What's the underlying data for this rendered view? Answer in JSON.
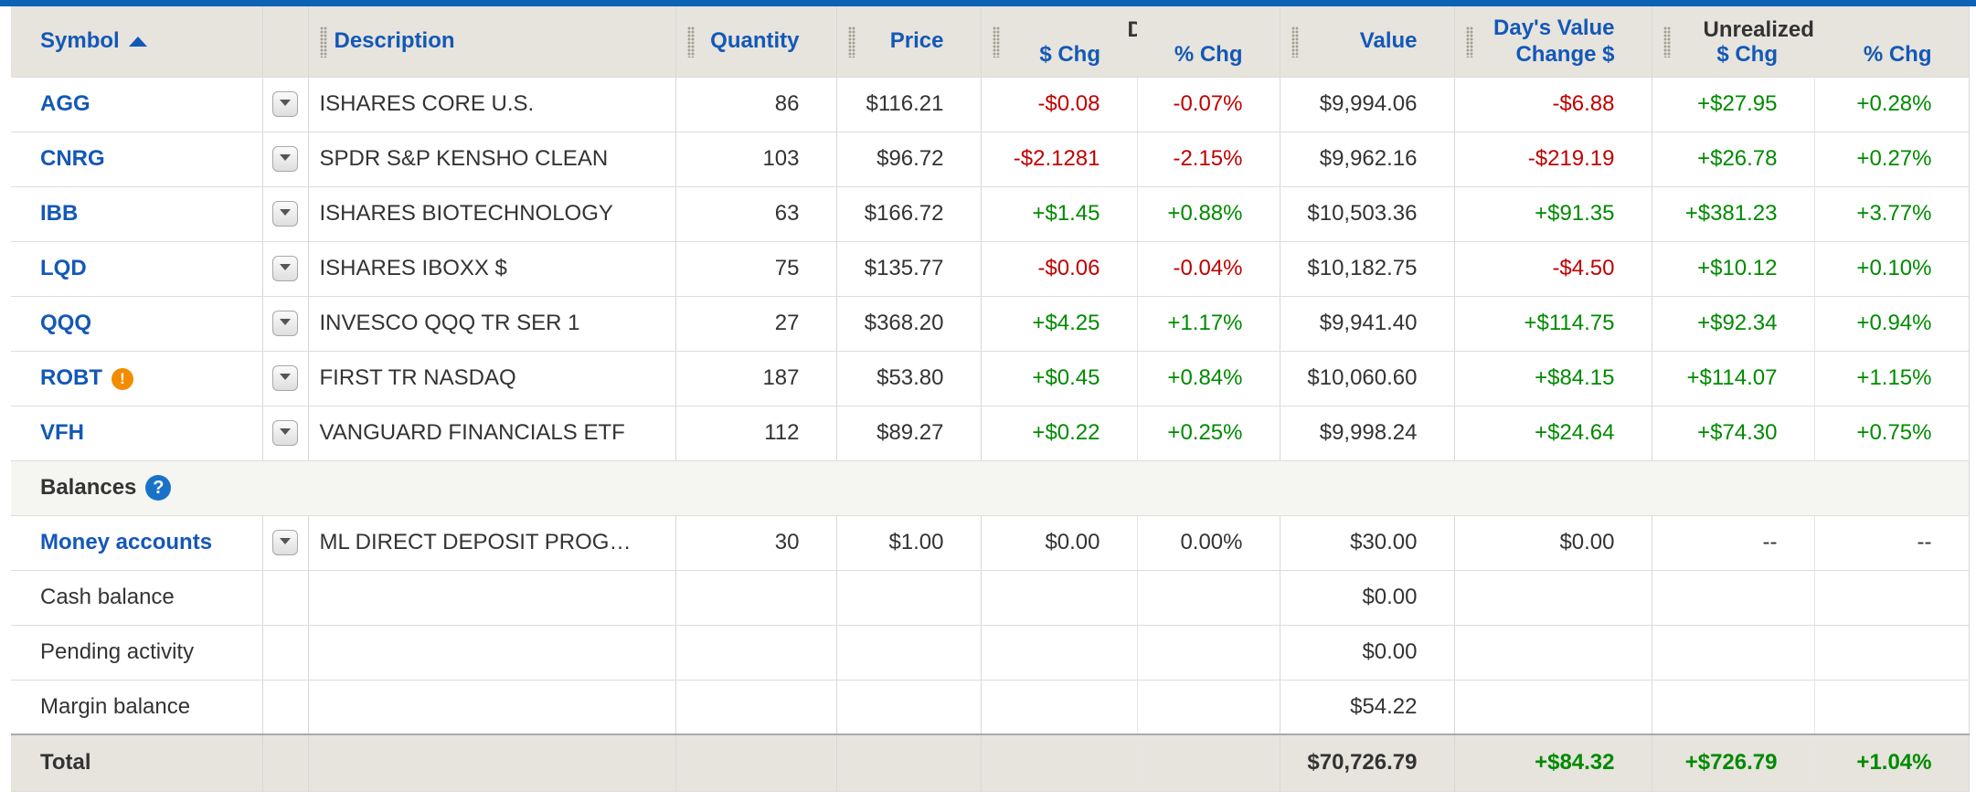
{
  "headers": {
    "symbol": "Symbol",
    "description": "Description",
    "quantity": "Quantity",
    "price": "Price",
    "days_price_group": "Day's Price",
    "days_price_chg": "$ Chg",
    "days_price_pct": "% Chg",
    "value": "Value",
    "days_value_change_line1": "Day's Value",
    "days_value_change_line2": "Change $",
    "unrealized_group": "Unrealized Gain/Loss",
    "unrealized_chg": "$ Chg",
    "unrealized_pct": "% Chg"
  },
  "holdings": [
    {
      "symbol": "AGG",
      "description": "ISHARES CORE U.S.",
      "quantity": "86",
      "price": "$116.21",
      "chg": "-$0.08",
      "pct": "-0.07%",
      "value": "$9,994.06",
      "day_value": "-$6.88",
      "ugl_chg": "+$27.95",
      "ugl_pct": "+0.28%"
    },
    {
      "symbol": "CNRG",
      "description": "SPDR S&P KENSHO CLEAN",
      "quantity": "103",
      "price": "$96.72",
      "chg": "-$2.1281",
      "pct": "-2.15%",
      "value": "$9,962.16",
      "day_value": "-$219.19",
      "ugl_chg": "+$26.78",
      "ugl_pct": "+0.27%"
    },
    {
      "symbol": "IBB",
      "description": "ISHARES BIOTECHNOLOGY",
      "quantity": "63",
      "price": "$166.72",
      "chg": "+$1.45",
      "pct": "+0.88%",
      "value": "$10,503.36",
      "day_value": "+$91.35",
      "ugl_chg": "+$381.23",
      "ugl_pct": "+3.77%"
    },
    {
      "symbol": "LQD",
      "description": "ISHARES IBOXX $",
      "quantity": "75",
      "price": "$135.77",
      "chg": "-$0.06",
      "pct": "-0.04%",
      "value": "$10,182.75",
      "day_value": "-$4.50",
      "ugl_chg": "+$10.12",
      "ugl_pct": "+0.10%"
    },
    {
      "symbol": "QQQ",
      "description": "INVESCO QQQ TR SER 1",
      "quantity": "27",
      "price": "$368.20",
      "chg": "+$4.25",
      "pct": "+1.17%",
      "value": "$9,941.40",
      "day_value": "+$114.75",
      "ugl_chg": "+$92.34",
      "ugl_pct": "+0.94%"
    },
    {
      "symbol": "ROBT",
      "description": "FIRST TR NASDAQ",
      "quantity": "187",
      "price": "$53.80",
      "chg": "+$0.45",
      "pct": "+0.84%",
      "value": "$10,060.60",
      "day_value": "+$84.15",
      "ugl_chg": "+$114.07",
      "ugl_pct": "+1.15%",
      "alert": "!"
    },
    {
      "symbol": "VFH",
      "description": "VANGUARD FINANCIALS ETF",
      "quantity": "112",
      "price": "$89.27",
      "chg": "+$0.22",
      "pct": "+0.25%",
      "value": "$9,998.24",
      "day_value": "+$24.64",
      "ugl_chg": "+$74.30",
      "ugl_pct": "+0.75%"
    }
  ],
  "balances": {
    "label": "Balances",
    "help_glyph": "?",
    "money": {
      "label": "Money accounts",
      "description": "ML DIRECT DEPOSIT PROG…",
      "quantity": "30",
      "price": "$1.00",
      "chg": "$0.00",
      "pct": "0.00%",
      "value": "$30.00",
      "day_value": "$0.00",
      "ugl_chg": "--",
      "ugl_pct": "--"
    },
    "cash": {
      "label": "Cash balance",
      "value": "$0.00"
    },
    "pending": {
      "label": "Pending activity",
      "value": "$0.00"
    },
    "margin": {
      "label": "Margin balance",
      "value": "$54.22"
    }
  },
  "total": {
    "label": "Total",
    "value": "$70,726.79",
    "day_value": "+$84.32",
    "ugl_chg": "+$726.79",
    "ugl_pct": "+1.04%"
  },
  "colors": {
    "accent": "#1458b7",
    "negative": "#c00000",
    "positive": "#008a00",
    "header_bg": "#e6e4dc",
    "top_bar": "#0c62b5"
  },
  "icons": {
    "sort": "sort-ascending-icon",
    "row_menu": "chevron-down-icon",
    "help": "help-icon",
    "alert": "alert-icon",
    "grip": "column-resize-grip-icon"
  }
}
